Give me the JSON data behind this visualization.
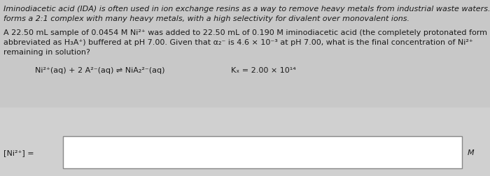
{
  "background_color": "#c8c8c8",
  "text_color": "#1a1a1a",
  "intro_line1": "Iminodiacetic acid (IDA) is often used in ion exchange resins as a way to remove heavy metals from industrial waste waters. It",
  "intro_line2": "forms a 2:1 complex with many heavy metals, with a high selectivity for divalent over monovalent ions.",
  "problem_line1": "A 22.50 mL sample of 0.0454 M Ni²⁺ was added to 22.50 mL of 0.190 M iminodiacetic acid (the completely protonated form is",
  "problem_line2": "abbreviated as H₃A⁺) buffered at pH 7.00. Given that α₂⁻ is 4.6 × 10⁻³ at pH 7.00, what is the final concentration of Ni²⁺",
  "problem_line3": "remaining in solution?",
  "reaction": "Ni²⁺(aq) + 2 A²⁻(aq) ⇌ NiA₂²⁻(aq)",
  "Kf_label": "Kₓ = 2.00 × 10¹⁴",
  "answer_label": "[Ni²⁺] =",
  "answer_unit": "M",
  "box_color": "#e8e8e8",
  "box_border_color": "#888888",
  "inner_box_color": "#ffffff"
}
